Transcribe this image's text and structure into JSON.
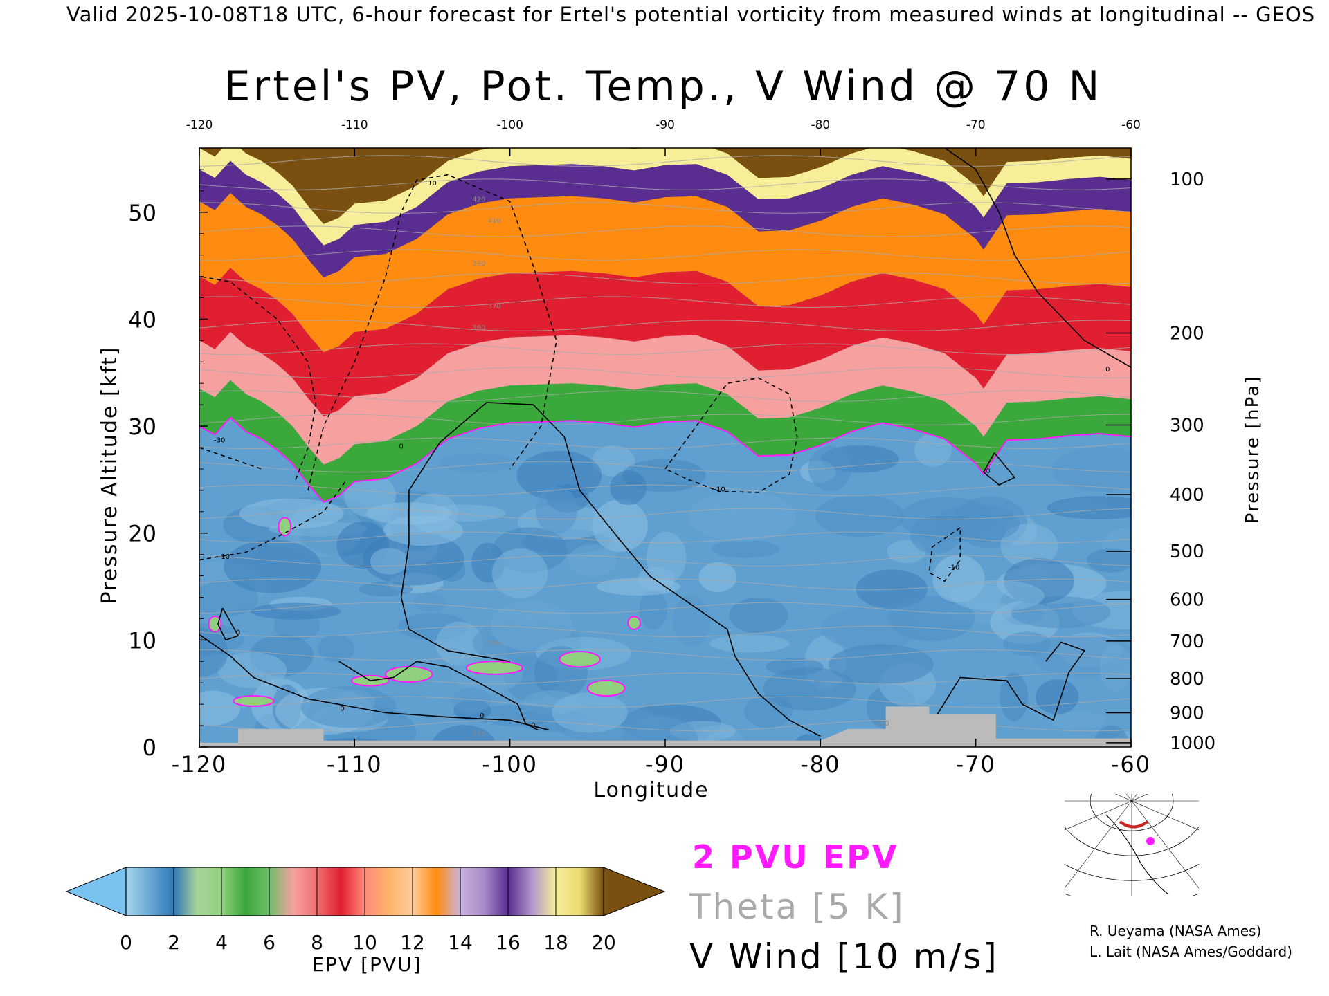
{
  "header": {
    "line": "Valid 2025-10-08T18 UTC, 6-hour forecast for Ertel's potential vorticity from measured winds at longitudinal -- GEOS"
  },
  "legend": {
    "epv_label": "2 PVU EPV",
    "theta_label": "Theta [5 K]",
    "wind_label": "V Wind [10 m/s]"
  },
  "credits": {
    "line1": "R. Ueyama (NASA Ames)",
    "line2": "L. Lait (NASA Ames/Goddard)"
  },
  "colorbar": {
    "label": "EPV [PVU]",
    "ticks": [
      "0",
      "2",
      "4",
      "6",
      "8",
      "10",
      "12",
      "14",
      "16",
      "18",
      "20"
    ]
  },
  "colors": {
    "epv_contour": "#ff1aff",
    "theta_contour": "#aaaaaa",
    "wind_contour": "#000000",
    "terrain": "#bbbbbb"
  },
  "chart_data": {
    "type": "heatmap",
    "title": "Ertel's PV, Pot. Temp., V Wind @ 70 N",
    "xlabel": "Longitude",
    "ylabel": "Pressure Altitude [kft]",
    "y2label": "Pressure [hPa]",
    "xlim": [
      -120,
      -60
    ],
    "ylim": [
      0,
      56
    ],
    "x_ticks": [
      "-120",
      "-110",
      "-100",
      "-90",
      "-80",
      "-70",
      "-60"
    ],
    "top_x_ticks": [
      "-120",
      "-110",
      "-100",
      "-90",
      "-80",
      "-70",
      "-60"
    ],
    "y_ticks": [
      "0",
      "10",
      "20",
      "30",
      "40",
      "50"
    ],
    "pressure_ticks": [
      {
        "label": "100",
        "kft": 53.1
      },
      {
        "label": "200",
        "kft": 38.7
      },
      {
        "label": "300",
        "kft": 30.1
      },
      {
        "label": "400",
        "kft": 23.6
      },
      {
        "label": "500",
        "kft": 18.3
      },
      {
        "label": "600",
        "kft": 13.8
      },
      {
        "label": "700",
        "kft": 9.9
      },
      {
        "label": "800",
        "kft": 6.4
      },
      {
        "label": "900",
        "kft": 3.2
      },
      {
        "label": "1000",
        "kft": 0.4
      }
    ],
    "colorbar_stops": [
      {
        "pvu": 0,
        "color": "#a7d5ee"
      },
      {
        "pvu": 1,
        "color": "#6aa7d4"
      },
      {
        "pvu": 2,
        "color": "#2f78b7"
      },
      {
        "pvu": 3,
        "color": "#a8d59b"
      },
      {
        "pvu": 4,
        "color": "#8fd07e"
      },
      {
        "pvu": 5,
        "color": "#3aa83a"
      },
      {
        "pvu": 6,
        "color": "#6fbe6a"
      },
      {
        "pvu": 7,
        "color": "#f6a0a0"
      },
      {
        "pvu": 8,
        "color": "#f07070"
      },
      {
        "pvu": 9,
        "color": "#e02030"
      },
      {
        "pvu": 10,
        "color": "#ff8a7a"
      },
      {
        "pvu": 11,
        "color": "#ffb36a"
      },
      {
        "pvu": 12,
        "color": "#ffcc99"
      },
      {
        "pvu": 13,
        "color": "#ff8c10"
      },
      {
        "pvu": 14,
        "color": "#c9b3dd"
      },
      {
        "pvu": 15,
        "color": "#a58bc7"
      },
      {
        "pvu": 16,
        "color": "#5a2d91"
      },
      {
        "pvu": 17,
        "color": "#b097cc"
      },
      {
        "pvu": 18,
        "color": "#f6ee99"
      },
      {
        "pvu": 19,
        "color": "#eadb70"
      },
      {
        "pvu": 20,
        "color": "#7a5010"
      }
    ],
    "tropopause_2pvu_kft": [
      {
        "lon": -120,
        "kft": 30.0
      },
      {
        "lon": -119,
        "kft": 29.2
      },
      {
        "lon": -118,
        "kft": 30.8
      },
      {
        "lon": -117,
        "kft": 29.5
      },
      {
        "lon": -116,
        "kft": 28.8
      },
      {
        "lon": -115,
        "kft": 27.8
      },
      {
        "lon": -114,
        "kft": 26.5
      },
      {
        "lon": -113,
        "kft": 24.6
      },
      {
        "lon": -112,
        "kft": 22.9
      },
      {
        "lon": -111,
        "kft": 23.5
      },
      {
        "lon": -110,
        "kft": 24.8
      },
      {
        "lon": -108,
        "kft": 25.1
      },
      {
        "lon": -106,
        "kft": 26.5
      },
      {
        "lon": -104,
        "kft": 28.8
      },
      {
        "lon": -102,
        "kft": 29.8
      },
      {
        "lon": -100,
        "kft": 30.3
      },
      {
        "lon": -98,
        "kft": 30.4
      },
      {
        "lon": -96,
        "kft": 30.5
      },
      {
        "lon": -94,
        "kft": 30.3
      },
      {
        "lon": -92,
        "kft": 29.9
      },
      {
        "lon": -90,
        "kft": 30.4
      },
      {
        "lon": -88,
        "kft": 30.5
      },
      {
        "lon": -86,
        "kft": 29.5
      },
      {
        "lon": -84,
        "kft": 27.2
      },
      {
        "lon": -82,
        "kft": 27.3
      },
      {
        "lon": -80,
        "kft": 28.2
      },
      {
        "lon": -78,
        "kft": 29.5
      },
      {
        "lon": -76,
        "kft": 30.3
      },
      {
        "lon": -74,
        "kft": 29.7
      },
      {
        "lon": -72,
        "kft": 28.8
      },
      {
        "lon": -70,
        "kft": 26.5
      },
      {
        "lon": -69.5,
        "kft": 25.5
      },
      {
        "lon": -68,
        "kft": 28.7
      },
      {
        "lon": -66,
        "kft": 28.8
      },
      {
        "lon": -64,
        "kft": 29.1
      },
      {
        "lon": -62,
        "kft": 29.3
      },
      {
        "lon": -60,
        "kft": 29.0
      }
    ],
    "stratosphere_bands": [
      {
        "name": "green",
        "base_offset_kft": 0.0,
        "thickness_kft": 3.5,
        "pvu": 5
      },
      {
        "name": "pink",
        "base_offset_kft": 3.5,
        "thickness_kft": 4.5,
        "pvu": 7
      },
      {
        "name": "red",
        "base_offset_kft": 8.0,
        "thickness_kft": 6.0,
        "pvu": 9
      },
      {
        "name": "orange",
        "base_offset_kft": 14.0,
        "thickness_kft": 7.0,
        "pvu": 13
      },
      {
        "name": "purple",
        "base_offset_kft": 21.0,
        "thickness_kft": 3.0,
        "pvu": 16
      },
      {
        "name": "yellow",
        "base_offset_kft": 24.0,
        "thickness_kft": 2.0,
        "pvu": 18
      }
    ],
    "theta_labels": [
      {
        "text": "420",
        "lon": -102,
        "kft": 51.0
      },
      {
        "text": "410",
        "lon": -101,
        "kft": 49.0
      },
      {
        "text": "390",
        "lon": -102,
        "kft": 45.0
      },
      {
        "text": "370",
        "lon": -101,
        "kft": 41.0
      },
      {
        "text": "360",
        "lon": -102,
        "kft": 39.0
      },
      {
        "text": "290",
        "lon": -101,
        "kft": 9.5
      },
      {
        "text": "270",
        "lon": -102,
        "kft": 1.0
      },
      {
        "text": "270",
        "lon": -76,
        "kft": 2.0
      }
    ],
    "wind_labels": [
      {
        "text": "10",
        "lon": -105,
        "kft": 52.5
      },
      {
        "text": "-30",
        "lon": -118.7,
        "kft": 28.5
      },
      {
        "text": "-10",
        "lon": -118.4,
        "kft": 17.6
      },
      {
        "text": "-10",
        "lon": -86.5,
        "kft": 23.9
      },
      {
        "text": "-10",
        "lon": -71.4,
        "kft": 16.6
      },
      {
        "text": "0",
        "lon": -107,
        "kft": 27.9
      },
      {
        "text": "0",
        "lon": -69.2,
        "kft": 25.6
      },
      {
        "text": "0",
        "lon": -117.5,
        "kft": 10.5
      },
      {
        "text": "0",
        "lon": -110.8,
        "kft": 3.4
      },
      {
        "text": "0",
        "lon": -61.5,
        "kft": 35.1
      },
      {
        "text": "0",
        "lon": -101.8,
        "kft": 2.7
      },
      {
        "text": "0",
        "lon": -98.5,
        "kft": 1.8
      }
    ],
    "terrain_kft": [
      {
        "lon": -120,
        "kft": 0.4
      },
      {
        "lon": -117.5,
        "kft": 0.4
      },
      {
        "lon": -117.5,
        "kft": 1.7
      },
      {
        "lon": -112,
        "kft": 1.7
      },
      {
        "lon": -112,
        "kft": 0.6
      },
      {
        "lon": -80,
        "kft": 0.6
      },
      {
        "lon": -78.2,
        "kft": 1.7
      },
      {
        "lon": -75.8,
        "kft": 1.7
      },
      {
        "lon": -75.8,
        "kft": 3.8
      },
      {
        "lon": -73,
        "kft": 3.8
      },
      {
        "lon": -73,
        "kft": 3.1
      },
      {
        "lon": -68.7,
        "kft": 3.1
      },
      {
        "lon": -68.7,
        "kft": 0.8
      },
      {
        "lon": -60,
        "kft": 0.8
      }
    ]
  }
}
